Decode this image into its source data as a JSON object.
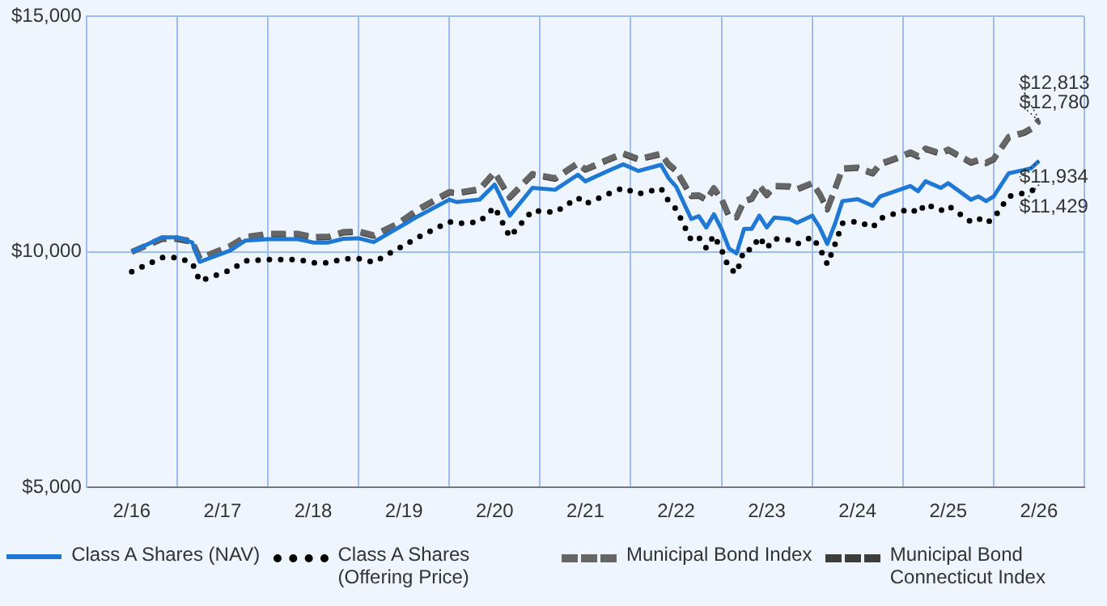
{
  "chart_data": {
    "type": "line",
    "x": [
      "2016-02",
      "2016-06",
      "2016-08",
      "2016-10",
      "2016-11",
      "2017-03",
      "2017-05",
      "2017-08",
      "2017-12",
      "2018-02",
      "2018-04",
      "2018-06",
      "2018-08",
      "2018-10",
      "2019-01",
      "2019-04",
      "2019-08",
      "2019-09",
      "2019-12",
      "2020-02",
      "2020-04",
      "2020-07",
      "2020-10",
      "2021-01",
      "2021-02",
      "2021-05",
      "2021-07",
      "2021-09",
      "2021-12",
      "2022-01",
      "2022-02",
      "2022-04",
      "2022-05",
      "2022-06",
      "2022-07",
      "2022-08",
      "2022-09",
      "2022-10",
      "2022-11",
      "2022-12",
      "2023-01",
      "2023-02",
      "2023-03",
      "2023-05",
      "2023-06",
      "2023-08",
      "2023-09",
      "2023-10",
      "2023-11",
      "2023-12",
      "2024-02",
      "2024-04",
      "2024-05",
      "2024-07",
      "2024-09",
      "2024-10",
      "2024-11",
      "2025-01",
      "2025-02",
      "2025-05",
      "2025-06",
      "2025-07",
      "2025-08",
      "2025-10",
      "2025-12",
      "2026-01",
      "2026-02"
    ],
    "series": [
      {
        "name": "Class A Shares (NAV)",
        "color": "#1f78d4",
        "line_style": "solid",
        "values": [
          10000,
          10310,
          10310,
          10200,
          9790,
          10030,
          10240,
          10270,
          10270,
          10200,
          10200,
          10280,
          10290,
          10210,
          10490,
          10770,
          11110,
          11060,
          11110,
          11430,
          10770,
          11360,
          11320,
          11640,
          11500,
          11720,
          11860,
          11720,
          11850,
          11570,
          11390,
          10700,
          10760,
          10520,
          10800,
          10490,
          10070,
          9970,
          10490,
          10490,
          10770,
          10520,
          10730,
          10700,
          10620,
          10770,
          10520,
          10170,
          10590,
          11080,
          11120,
          10980,
          11180,
          11290,
          11400,
          11290,
          11500,
          11360,
          11460,
          11110,
          11180,
          11080,
          11180,
          11670,
          11740,
          11780,
          11934
        ]
      },
      {
        "name": "Class A Shares (Offering Price)",
        "color": "#000000",
        "line_style": "dotted",
        "values": [
          9580,
          9880,
          9880,
          9770,
          9380,
          9610,
          9810,
          9840,
          9840,
          9770,
          9770,
          9850,
          9860,
          9780,
          10050,
          10320,
          10640,
          10600,
          10640,
          10950,
          10320,
          10880,
          10840,
          11150,
          11020,
          11230,
          11360,
          11230,
          11350,
          11080,
          10910,
          10250,
          10310,
          10080,
          10350,
          10050,
          9650,
          9550,
          10050,
          10050,
          10320,
          10080,
          10280,
          10250,
          10170,
          10320,
          10080,
          9740,
          10150,
          10610,
          10650,
          10520,
          10710,
          10820,
          10920,
          10820,
          11020,
          10880,
          10980,
          10640,
          10710,
          10610,
          10710,
          11180,
          11250,
          11290,
          11429
        ]
      },
      {
        "name": "Municipal Bond Index",
        "color": "#666666",
        "line_style": "dashed",
        "values": [
          10000,
          10290,
          10290,
          10230,
          9870,
          10130,
          10320,
          10390,
          10390,
          10320,
          10330,
          10430,
          10440,
          10360,
          10590,
          10920,
          11280,
          11260,
          11340,
          11700,
          11170,
          11660,
          11570,
          11890,
          11760,
          11970,
          12100,
          11980,
          12090,
          11870,
          11740,
          11200,
          11210,
          11120,
          11360,
          11140,
          10770,
          10750,
          11090,
          11140,
          11420,
          11220,
          11410,
          11400,
          11340,
          11470,
          11240,
          10920,
          11340,
          11780,
          11800,
          11680,
          11880,
          11990,
          12120,
          12040,
          12200,
          12100,
          12180,
          11910,
          11960,
          11900,
          11980,
          12450,
          12540,
          12630,
          12813
        ]
      },
      {
        "name": "Municipal Bond Connecticut Index",
        "color": "#3d3d3d",
        "line_style": "dashed",
        "values": [
          10000,
          10270,
          10270,
          10210,
          9850,
          10110,
          10300,
          10370,
          10370,
          10300,
          10310,
          10410,
          10420,
          10340,
          10570,
          10900,
          11260,
          11240,
          11320,
          11680,
          11150,
          11640,
          11550,
          11870,
          11740,
          11950,
          12080,
          11960,
          12070,
          11850,
          11720,
          11180,
          11190,
          11100,
          11340,
          11120,
          10750,
          10730,
          11070,
          11120,
          11400,
          11200,
          11390,
          11380,
          11320,
          11450,
          11220,
          10900,
          11320,
          11760,
          11780,
          11660,
          11860,
          11970,
          12100,
          12020,
          12180,
          12080,
          12160,
          11890,
          11940,
          11880,
          11960,
          12430,
          12520,
          12610,
          12780
        ]
      }
    ],
    "xlim": [
      "2015-08",
      "2026-08"
    ],
    "xticks": [
      {
        "value": "2015-08",
        "label": null
      },
      {
        "value": "2016-02",
        "label": "2/16"
      },
      {
        "value": "2016-08",
        "label": null
      },
      {
        "value": "2017-02",
        "label": "2/17"
      },
      {
        "value": "2017-08",
        "label": null
      },
      {
        "value": "2018-02",
        "label": "2/18"
      },
      {
        "value": "2018-08",
        "label": null
      },
      {
        "value": "2019-02",
        "label": "2/19"
      },
      {
        "value": "2019-08",
        "label": null
      },
      {
        "value": "2020-02",
        "label": "2/20"
      },
      {
        "value": "2020-08",
        "label": null
      },
      {
        "value": "2021-02",
        "label": "2/21"
      },
      {
        "value": "2021-08",
        "label": null
      },
      {
        "value": "2022-02",
        "label": "2/22"
      },
      {
        "value": "2022-08",
        "label": null
      },
      {
        "value": "2023-02",
        "label": "2/23"
      },
      {
        "value": "2023-08",
        "label": null
      },
      {
        "value": "2024-02",
        "label": "2/24"
      },
      {
        "value": "2024-08",
        "label": null
      },
      {
        "value": "2025-02",
        "label": "2/25"
      },
      {
        "value": "2025-08",
        "label": null
      },
      {
        "value": "2026-02",
        "label": "2/26"
      },
      {
        "value": "2026-08",
        "label": null
      }
    ],
    "ylim": [
      5000,
      15000
    ],
    "yticks": [
      {
        "value": 5000,
        "label": "$5,000"
      },
      {
        "value": 10000,
        "label": "$10,000"
      },
      {
        "value": 15000,
        "label": "$15,000"
      }
    ],
    "grid": true,
    "legend": "bottom",
    "marker": "none",
    "annotations": [
      {
        "text": "$12,813",
        "x": "2026-02",
        "y": 12813
      },
      {
        "text": "$12,780",
        "x": "2026-02",
        "y": 12780
      },
      {
        "text": "$11,934",
        "x": "2026-02",
        "y": 11934
      },
      {
        "text": "$11,429",
        "x": "2026-02",
        "y": 11429
      }
    ]
  }
}
